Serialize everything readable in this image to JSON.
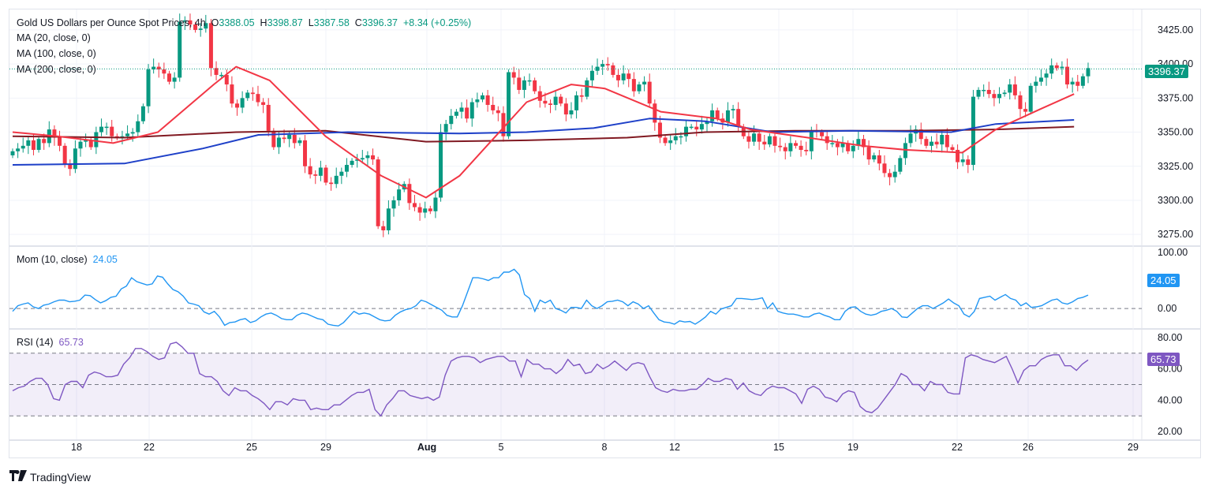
{
  "header": {
    "symbol": "Gold US Dollars per Ounce Spot Prices, 4h",
    "open_label": "O",
    "open": "3388.05",
    "high_label": "H",
    "high": "3398.87",
    "low_label": "L",
    "low": "3387.58",
    "close_label": "C",
    "close": "3396.37",
    "change": "+8.34 (+0.25%)"
  },
  "indicators": {
    "ma20": "MA (20, close, 0)",
    "ma100": "MA (100, close, 0)",
    "ma200": "MA (200, close, 0)",
    "mom_label": "Mom (10, close)",
    "mom_value": "24.05",
    "rsi_label": "RSI (14)",
    "rsi_value": "65.73"
  },
  "price_tag": "3396.37",
  "mom_tag": "24.05",
  "rsi_tag": "65.73",
  "footer": {
    "brand": "TradingView",
    "logo_icon": "tradingview-logo-icon"
  },
  "colors": {
    "up": "#089981",
    "down": "#f23645",
    "ma20": "#f23645",
    "ma100": "#1e40c8",
    "ma200": "#801922",
    "mom": "#2196f3",
    "rsi": "#7e57c2"
  },
  "chart_data": {
    "type": "candlestick",
    "title": "Gold US Dollars per Ounce Spot Prices, 4h",
    "x_ticks": [
      "18",
      "22",
      "25",
      "29",
      "Aug",
      "5",
      "8",
      "12",
      "15",
      "19",
      "22",
      "26",
      "29"
    ],
    "price_axis": {
      "ticks": [
        3425,
        3400,
        3375,
        3350,
        3325,
        3300,
        3275
      ],
      "range": [
        3267,
        3440
      ]
    },
    "mom_axis": {
      "ticks": [
        100,
        0
      ],
      "range": [
        -35,
        110
      ]
    },
    "rsi_axis": {
      "ticks": [
        80,
        60,
        40,
        20
      ],
      "range": [
        15,
        85
      ],
      "bands": [
        70,
        50,
        30
      ]
    },
    "close_series": [
      3336,
      3338,
      3340,
      3344,
      3337,
      3345,
      3342,
      3352,
      3346,
      3340,
      3326,
      3323,
      3338,
      3343,
      3344,
      3339,
      3350,
      3354,
      3354,
      3347,
      3346,
      3347,
      3349,
      3350,
      3358,
      3369,
      3396,
      3398,
      3396,
      3393,
      3387,
      3390,
      3431,
      3432,
      3429,
      3425,
      3426,
      3430,
      3397,
      3392,
      3392,
      3385,
      3371,
      3368,
      3375,
      3379,
      3378,
      3372,
      3370,
      3351,
      3339,
      3346,
      3345,
      3348,
      3342,
      3344,
      3325,
      3319,
      3318,
      3324,
      3313,
      3312,
      3318,
      3321,
      3326,
      3329,
      3330,
      3331,
      3333,
      3330,
      3281,
      3278,
      3294,
      3300,
      3308,
      3312,
      3298,
      3295,
      3291,
      3294,
      3292,
      3302,
      3350,
      3356,
      3362,
      3365,
      3368,
      3360,
      3372,
      3374,
      3377,
      3370,
      3366,
      3364,
      3347,
      3394,
      3390,
      3381,
      3388,
      3388,
      3380,
      3373,
      3371,
      3370,
      3376,
      3371,
      3363,
      3366,
      3377,
      3376,
      3388,
      3395,
      3398,
      3400,
      3399,
      3392,
      3388,
      3393,
      3389,
      3380,
      3385,
      3387,
      3371,
      3357,
      3346,
      3342,
      3344,
      3347,
      3347,
      3354,
      3354,
      3352,
      3356,
      3358,
      3366,
      3360,
      3357,
      3366,
      3367,
      3354,
      3347,
      3343,
      3349,
      3343,
      3341,
      3347,
      3340,
      3339,
      3336,
      3342,
      3340,
      3337,
      3336,
      3351,
      3350,
      3347,
      3342,
      3342,
      3339,
      3342,
      3336,
      3340,
      3345,
      3339,
      3330,
      3333,
      3327,
      3320,
      3317,
      3321,
      3331,
      3342,
      3349,
      3352,
      3345,
      3340,
      3343,
      3341,
      3348,
      3339,
      3337,
      3328,
      3330,
      3326,
      3376,
      3381,
      3381,
      3378,
      3375,
      3378,
      3379,
      3385,
      3377,
      3367,
      3365,
      3384,
      3387,
      3390,
      3393,
      3399,
      3397,
      3398,
      3385,
      3387,
      3384,
      3391,
      3397
    ],
    "ma20_points": [
      [
        0,
        3350
      ],
      [
        0.04,
        3347
      ],
      [
        0.09,
        3342
      ],
      [
        0.13,
        3350
      ],
      [
        0.18,
        3385
      ],
      [
        0.2,
        3398
      ],
      [
        0.23,
        3388
      ],
      [
        0.28,
        3347
      ],
      [
        0.33,
        3318
      ],
      [
        0.37,
        3302
      ],
      [
        0.4,
        3318
      ],
      [
        0.43,
        3345
      ],
      [
        0.46,
        3372
      ],
      [
        0.5,
        3385
      ],
      [
        0.53,
        3382
      ],
      [
        0.58,
        3365
      ],
      [
        0.63,
        3360
      ],
      [
        0.66,
        3352
      ],
      [
        0.72,
        3345
      ],
      [
        0.76,
        3340
      ],
      [
        0.8,
        3337
      ],
      [
        0.85,
        3335
      ],
      [
        0.88,
        3352
      ],
      [
        0.92,
        3367
      ],
      [
        0.95,
        3378
      ]
    ],
    "ma100_points": [
      [
        0,
        3326
      ],
      [
        0.1,
        3327
      ],
      [
        0.17,
        3338
      ],
      [
        0.22,
        3348
      ],
      [
        0.3,
        3350
      ],
      [
        0.4,
        3349
      ],
      [
        0.46,
        3350
      ],
      [
        0.52,
        3353
      ],
      [
        0.57,
        3360
      ],
      [
        0.62,
        3358
      ],
      [
        0.68,
        3350
      ],
      [
        0.75,
        3351
      ],
      [
        0.84,
        3350
      ],
      [
        0.88,
        3356
      ],
      [
        0.95,
        3359
      ]
    ],
    "ma200_points": [
      [
        0,
        3347
      ],
      [
        0.1,
        3346
      ],
      [
        0.2,
        3350
      ],
      [
        0.28,
        3351
      ],
      [
        0.37,
        3343
      ],
      [
        0.46,
        3344
      ],
      [
        0.55,
        3346
      ],
      [
        0.62,
        3350
      ],
      [
        0.7,
        3351
      ],
      [
        0.8,
        3351
      ],
      [
        0.88,
        3352
      ],
      [
        0.95,
        3354
      ]
    ],
    "momentum_series": [
      -5,
      5,
      8,
      10,
      3,
      0,
      6,
      8,
      12,
      15,
      15,
      12,
      13,
      15,
      24,
      23,
      16,
      10,
      14,
      20,
      22,
      35,
      40,
      55,
      48,
      45,
      42,
      44,
      58,
      56,
      44,
      34,
      30,
      22,
      10,
      8,
      5,
      -6,
      -10,
      -5,
      -15,
      -30,
      -25,
      -24,
      -20,
      -18,
      -25,
      -22,
      -15,
      -10,
      -8,
      -12,
      -18,
      -20,
      -20,
      -12,
      -8,
      -10,
      -14,
      -18,
      -20,
      -28,
      -30,
      -31,
      -25,
      -15,
      -5,
      -10,
      -8,
      -10,
      -15,
      -20,
      -22,
      -21,
      -12,
      -6,
      -2,
      0,
      5,
      15,
      12,
      7,
      2,
      -3,
      -12,
      -15,
      -15,
      5,
      30,
      55,
      55,
      53,
      50,
      55,
      55,
      65,
      65,
      70,
      60,
      25,
      18,
      -5,
      15,
      10,
      15,
      0,
      -3,
      -8,
      2,
      2,
      0,
      15,
      5,
      0,
      5,
      12,
      13,
      15,
      12,
      5,
      12,
      8,
      0,
      5,
      -8,
      -20,
      -24,
      -25,
      -28,
      -22,
      -24,
      -23,
      -28,
      -22,
      -15,
      -5,
      -10,
      -1,
      2,
      5,
      18,
      18,
      17,
      16,
      17,
      19,
      0,
      10,
      -5,
      -8,
      -10,
      -10,
      -12,
      -15,
      -15,
      -10,
      -8,
      -12,
      -15,
      -20,
      -20,
      -5,
      2,
      3,
      -5,
      -10,
      -12,
      -10,
      -5,
      -3,
      0,
      -5,
      -15,
      -16,
      -8,
      0,
      5,
      5,
      0,
      5,
      10,
      17,
      10,
      5,
      -10,
      -15,
      -5,
      18,
      20,
      22,
      15,
      20,
      25,
      18,
      15,
      5,
      10,
      2,
      3,
      5,
      10,
      15,
      17,
      10,
      8,
      12,
      18,
      20,
      24.05
    ],
    "rsi_series": [
      46,
      48,
      49,
      52,
      54,
      54,
      50,
      41,
      40,
      50,
      52,
      52,
      48,
      56,
      58,
      57,
      55,
      55,
      56,
      63,
      67,
      73,
      73,
      71,
      68,
      66,
      67,
      76,
      77,
      74,
      70,
      70,
      57,
      55,
      55,
      52,
      46,
      43,
      48,
      46,
      46,
      43,
      41,
      38,
      34,
      39,
      39,
      37,
      41,
      40,
      40,
      34,
      35,
      34,
      34,
      37,
      37,
      40,
      43,
      45,
      45,
      47,
      34,
      30,
      37,
      41,
      46,
      46,
      43,
      42,
      41,
      42,
      40,
      42,
      56,
      65,
      67,
      68,
      68,
      67,
      64,
      66,
      67,
      68,
      68,
      65,
      65,
      55,
      66,
      63,
      63,
      60,
      60,
      57,
      60,
      66,
      62,
      63,
      57,
      58,
      63,
      60,
      62,
      65,
      62,
      59,
      63,
      64,
      63,
      55,
      48,
      46,
      45,
      47,
      46,
      46,
      47,
      47,
      50,
      54,
      52,
      52,
      54,
      53,
      47,
      51,
      46,
      44,
      43,
      47,
      49,
      48,
      48,
      46,
      44,
      38,
      47,
      49,
      47,
      42,
      41,
      39,
      44,
      46,
      45,
      36,
      33,
      32,
      35,
      40,
      45,
      50,
      57,
      55,
      50,
      50,
      46,
      52,
      50,
      50,
      45,
      44,
      44,
      67,
      69,
      68,
      66,
      65,
      64,
      66,
      68,
      60,
      51,
      59,
      62,
      62,
      66,
      68,
      69,
      69,
      62,
      62,
      59,
      63,
      65.73
    ]
  }
}
